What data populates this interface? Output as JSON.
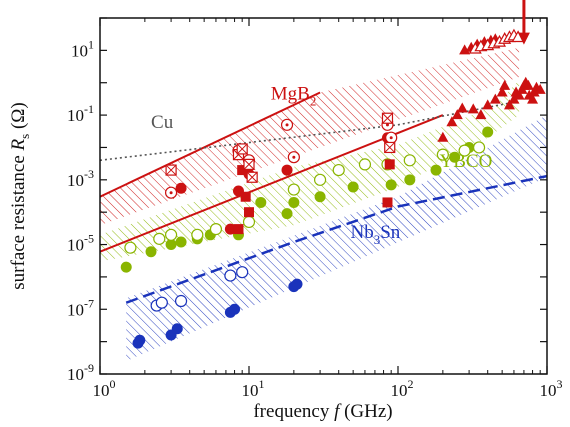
{
  "chart_data": {
    "type": "scatter",
    "xlabel": "frequency f (GHz)",
    "ylabel": "surface resistance R_s (Ω)",
    "xscale": "log",
    "yscale": "log",
    "xlim": [
      1,
      1000
    ],
    "ylim": [
      1e-09,
      100
    ],
    "grid": false,
    "x_ticks": [
      {
        "value": 1,
        "base": "10",
        "exp": "0"
      },
      {
        "value": 10,
        "base": "10",
        "exp": "1"
      },
      {
        "value": 100,
        "base": "10",
        "exp": "2"
      },
      {
        "value": 1000,
        "base": "10",
        "exp": "3"
      }
    ],
    "y_ticks": [
      {
        "value": 1e-09,
        "base": "10",
        "exp": "-9"
      },
      {
        "value": 1e-07,
        "base": "10",
        "exp": "-7"
      },
      {
        "value": 1e-05,
        "base": "10",
        "exp": "-5"
      },
      {
        "value": 0.001,
        "base": "10",
        "exp": "-3"
      },
      {
        "value": 0.1,
        "base": "10",
        "exp": "-1"
      },
      {
        "value": 10,
        "base": "10",
        "exp": "1"
      }
    ],
    "xlabel_parts": {
      "pre": "frequency ",
      "var": "f",
      "post": " (GHz)"
    },
    "ylabel_parts": {
      "pre": "surface resistance ",
      "var": "R",
      "sub": "s",
      "post": " (Ω)"
    },
    "series_labels": [
      {
        "name": "MgB2",
        "main": "MgB",
        "sub": "2",
        "color": "#cc1111",
        "x": 14,
        "y": 0.3
      },
      {
        "name": "Cu",
        "main": "Cu",
        "sub": "",
        "color": "#555555",
        "x": 2.2,
        "y": 0.04
      },
      {
        "name": "YBCO",
        "main": "YBCO",
        "sub": "",
        "color": "#8ab500",
        "x": 190,
        "y": 0.0025
      },
      {
        "name": "Nb3Sn",
        "main": "Nb",
        "sub": "3",
        "post": "Sn",
        "color": "#1a33bb",
        "x": 48,
        "y": 1.6e-05
      }
    ],
    "regions": [
      {
        "name": "MgB2 band",
        "color": "#cc1111",
        "pattern": "hatch",
        "polygon": [
          [
            1,
            4e-05
          ],
          [
            1,
            0.0003
          ],
          [
            30,
            0.5
          ],
          [
            650,
            12
          ],
          [
            650,
            1.5
          ],
          [
            1,
            4e-05
          ]
        ]
      },
      {
        "name": "YBCO band",
        "color": "#8ab500",
        "pattern": "hatch",
        "polygon": [
          [
            1,
            3e-06
          ],
          [
            1,
            2e-05
          ],
          [
            20,
            0.0025
          ],
          [
            100,
            0.012
          ],
          [
            450,
            0.2
          ],
          [
            650,
            1.2
          ],
          [
            650,
            0.1
          ],
          [
            400,
            0.02
          ],
          [
            100,
            0.0006
          ],
          [
            20,
            4e-05
          ],
          [
            1,
            3e-06
          ]
        ]
      },
      {
        "name": "Nb3Sn band",
        "color": "#1a33bb",
        "pattern": "hatch",
        "polygon": [
          [
            1.5,
            2.5e-09
          ],
          [
            1.5,
            2.2e-07
          ],
          [
            100,
            0.0003
          ],
          [
            350,
            0.007
          ],
          [
            1000,
            0.1
          ],
          [
            1000,
            0.0012
          ],
          [
            1.5,
            2.5e-09
          ]
        ]
      }
    ],
    "lines": [
      {
        "name": "MgB2 upper",
        "color": "#cc1111",
        "style": "solid",
        "points": [
          [
            1,
            0.0003
          ],
          [
            30,
            0.5
          ]
        ]
      },
      {
        "name": "MgB2 lower",
        "color": "#cc1111",
        "style": "solid",
        "points": [
          [
            1,
            6e-06
          ],
          [
            200,
            0.1
          ]
        ]
      },
      {
        "name": "Cu",
        "color": "#555555",
        "style": "dotted",
        "points": [
          [
            1,
            0.004
          ],
          [
            100,
            0.05
          ],
          [
            600,
            0.25
          ]
        ]
      },
      {
        "name": "Nb3Sn lower",
        "color": "#1a33bb",
        "style": "dashed",
        "points": [
          [
            1.5,
            1.6e-07
          ],
          [
            20,
            1.2e-05
          ],
          [
            100,
            0.00015
          ],
          [
            1000,
            0.0013
          ]
        ]
      }
    ],
    "points": [
      {
        "series": "Nb3Sn",
        "marker": "filled-circle",
        "color": "#1a33bb",
        "xy": [
          [
            1.8,
            9e-09
          ],
          [
            1.85,
            1.1e-08
          ],
          [
            3,
            1.6e-08
          ],
          [
            3.3,
            2.5e-08
          ],
          [
            7.5,
            8e-08
          ],
          [
            8,
            1e-07
          ],
          [
            20,
            5e-07
          ],
          [
            21,
            6e-07
          ]
        ]
      },
      {
        "series": "Nb3Sn",
        "marker": "open-circle",
        "color": "#1a33bb",
        "xy": [
          [
            2.4,
            1.3e-07
          ],
          [
            2.6,
            1.6e-07
          ],
          [
            3.5,
            1.8e-07
          ],
          [
            7.5,
            1.1e-06
          ],
          [
            9,
            1.4e-06
          ]
        ]
      },
      {
        "series": "YBCO",
        "marker": "filled-circle",
        "color": "#8ab500",
        "xy": [
          [
            1.5,
            2e-06
          ],
          [
            2.2,
            6e-06
          ],
          [
            3.0,
            1e-05
          ],
          [
            3.5,
            1.2e-05
          ],
          [
            4.5,
            1.5e-05
          ],
          [
            5.5,
            2e-05
          ],
          [
            8.5,
            2e-05
          ],
          [
            12,
            0.0002
          ],
          [
            18,
            9e-05
          ],
          [
            20,
            0.0002
          ],
          [
            30,
            0.0003
          ],
          [
            50,
            0.0006
          ],
          [
            90,
            0.0007
          ],
          [
            120,
            0.001
          ],
          [
            180,
            0.002
          ],
          [
            240,
            0.005
          ],
          [
            300,
            0.01
          ],
          [
            400,
            0.03
          ]
        ]
      },
      {
        "series": "YBCO",
        "marker": "open-circle",
        "color": "#8ab500",
        "xy": [
          [
            1.6,
            8e-06
          ],
          [
            2.5,
            1.5e-05
          ],
          [
            3.0,
            2e-05
          ],
          [
            4.5,
            2e-05
          ],
          [
            6,
            3e-05
          ],
          [
            10,
            5e-05
          ],
          [
            20,
            0.0005
          ],
          [
            30,
            0.001
          ],
          [
            40,
            0.002
          ],
          [
            60,
            0.003
          ],
          [
            85,
            0.003
          ],
          [
            120,
            0.004
          ],
          [
            200,
            0.006
          ],
          [
            280,
            0.008
          ],
          [
            350,
            0.01
          ]
        ]
      },
      {
        "series": "MgB2",
        "marker": "filled-circle",
        "color": "#cc1111",
        "xy": [
          [
            3.5,
            0.00055
          ],
          [
            7.5,
            3e-05
          ],
          [
            8.5,
            0.00045
          ],
          [
            10,
            0.0015
          ],
          [
            18,
            0.002
          ],
          [
            85,
            0.02
          ]
        ]
      },
      {
        "series": "MgB2",
        "marker": "open-circle-dot",
        "color": "#cc1111",
        "xy": [
          [
            3,
            0.0004
          ],
          [
            8.5,
            0.008
          ],
          [
            10,
            0.004
          ],
          [
            18,
            0.05
          ],
          [
            20,
            0.005
          ],
          [
            85,
            0.05
          ],
          [
            90,
            0.02
          ]
        ]
      },
      {
        "series": "MgB2",
        "marker": "filled-square",
        "color": "#cc1111",
        "xy": [
          [
            8.5,
            3e-05
          ],
          [
            9,
            0.002
          ],
          [
            9.5,
            0.0003
          ],
          [
            10,
            0.0001
          ],
          [
            85,
            0.0002
          ],
          [
            88,
            0.003
          ]
        ]
      },
      {
        "series": "MgB2",
        "marker": "open-square-x",
        "color": "#cc1111",
        "xy": [
          [
            3,
            0.002
          ],
          [
            8.5,
            0.006
          ],
          [
            9,
            0.009
          ],
          [
            10,
            0.003
          ],
          [
            10.5,
            0.0012
          ],
          [
            85,
            0.08
          ],
          [
            88,
            0.01
          ]
        ]
      },
      {
        "series": "MgB2",
        "marker": "filled-triangle",
        "color": "#cc1111",
        "xy": [
          [
            200,
            0.02
          ],
          [
            230,
            0.06
          ],
          [
            250,
            0.1
          ],
          [
            270,
            0.16
          ],
          [
            320,
            0.15
          ],
          [
            360,
            0.1
          ],
          [
            400,
            0.2
          ],
          [
            450,
            0.3
          ],
          [
            500,
            0.5
          ],
          [
            520,
            0.8
          ],
          [
            560,
            0.2
          ],
          [
            600,
            0.3
          ],
          [
            620,
            0.5
          ],
          [
            650,
            0.4
          ],
          [
            680,
            0.6
          ],
          [
            700,
            0.8
          ],
          [
            720,
            1.0
          ],
          [
            750,
            0.8
          ],
          [
            760,
            0.4
          ],
          [
            800,
            0.3
          ],
          [
            820,
            0.5
          ],
          [
            850,
            0.7
          ],
          [
            900,
            0.6
          ],
          [
            280,
            10
          ],
          [
            310,
            12
          ],
          [
            340,
            15
          ],
          [
            380,
            18
          ],
          [
            420,
            20
          ],
          [
            450,
            22
          ]
        ]
      },
      {
        "series": "MgB2",
        "marker": "open-triangle",
        "color": "#cc1111",
        "xy": [
          [
            330,
            11
          ],
          [
            360,
            13
          ],
          [
            400,
            14
          ],
          [
            440,
            16
          ],
          [
            480,
            18
          ],
          [
            520,
            22
          ],
          [
            560,
            25
          ],
          [
            600,
            28
          ],
          [
            640,
            25
          ]
        ]
      }
    ],
    "arrow": {
      "color": "#cc1111",
      "x": 700,
      "y_from": 250,
      "y_to": 15
    }
  }
}
